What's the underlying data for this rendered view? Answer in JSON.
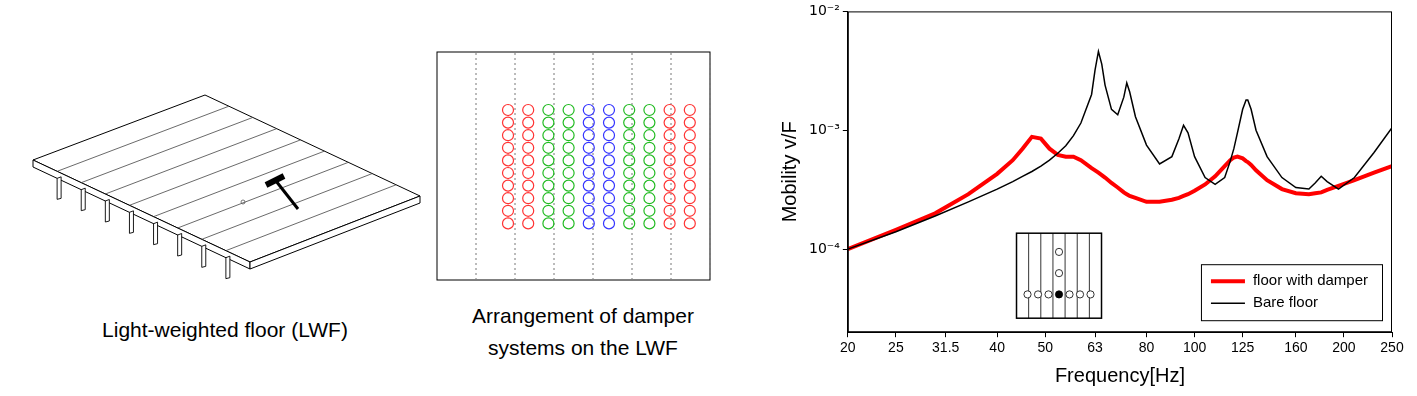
{
  "floor_drawing": {
    "caption": "Light-weighted floor (LWF)"
  },
  "damper_arrangement": {
    "caption": [
      "Arrangement of damper",
      "systems on the LWF"
    ]
  },
  "chart_data": {
    "type": "line",
    "x_label": "Frequency[Hz]",
    "y_label": "Mobility v/F",
    "log": true,
    "grid": false,
    "legend": "lower right",
    "xlim": [
      20,
      250
    ],
    "xticks": [
      20,
      25,
      31.5,
      40,
      50,
      63,
      80,
      100,
      125,
      160,
      200,
      250
    ],
    "ylim": [
      2e-05,
      0.01
    ],
    "yticks": [
      {
        "value": 0.0001,
        "label": "10⁻⁴"
      },
      {
        "value": 0.001,
        "label": "10⁻³"
      },
      {
        "value": 0.01,
        "label": "10⁻²"
      }
    ],
    "x": [
      20,
      25,
      30,
      35,
      40,
      43,
      45,
      47,
      49,
      51,
      53,
      55,
      57,
      59,
      62,
      63,
      64,
      65,
      66,
      68,
      70,
      72,
      73,
      74,
      76,
      80,
      85,
      90,
      93,
      95,
      97,
      100,
      105,
      110,
      115,
      118,
      120,
      122,
      125,
      127,
      128,
      130,
      133,
      140,
      150,
      160,
      170,
      175,
      180,
      185,
      195,
      210,
      230,
      250
    ],
    "series": [
      {
        "name": "floor with damper",
        "color": "#ff0000",
        "values": [
          0.0001,
          0.000145,
          0.0002,
          0.00029,
          0.00043,
          0.00056,
          0.0007,
          0.00088,
          0.00085,
          0.0007,
          0.00062,
          0.0006,
          0.0006,
          0.00056,
          0.00048,
          0.00046,
          0.00044,
          0.00042,
          0.0004,
          0.00036,
          0.00033,
          0.0003,
          0.00029,
          0.00028,
          0.00027,
          0.00025,
          0.00025,
          0.00026,
          0.00027,
          0.00028,
          0.00029,
          0.00031,
          0.00035,
          0.00041,
          0.0005,
          0.00056,
          0.00059,
          0.0006,
          0.00058,
          0.00055,
          0.00054,
          0.00051,
          0.00046,
          0.00038,
          0.00032,
          0.000295,
          0.00029,
          0.000295,
          0.0003,
          0.000315,
          0.00034,
          0.00038,
          0.00044,
          0.0005
        ]
      },
      {
        "name": "Bare floor",
        "color": "#000000",
        "values": [
          0.0001,
          0.00014,
          0.00019,
          0.00025,
          0.00032,
          0.00037,
          0.00041,
          0.00045,
          0.0005,
          0.00056,
          0.00064,
          0.00074,
          0.0009,
          0.00115,
          0.002,
          0.0032,
          0.0046,
          0.0036,
          0.0024,
          0.0015,
          0.00135,
          0.0019,
          0.0025,
          0.0021,
          0.0013,
          0.00075,
          0.00052,
          0.0006,
          0.00085,
          0.0011,
          0.00095,
          0.0006,
          0.0004,
          0.00035,
          0.0004,
          0.00055,
          0.0007,
          0.00095,
          0.0015,
          0.0018,
          0.0018,
          0.0015,
          0.001,
          0.0006,
          0.0004,
          0.00033,
          0.00032,
          0.00036,
          0.00041,
          0.00037,
          0.00032,
          0.0004,
          0.00065,
          0.00105
        ]
      }
    ]
  }
}
